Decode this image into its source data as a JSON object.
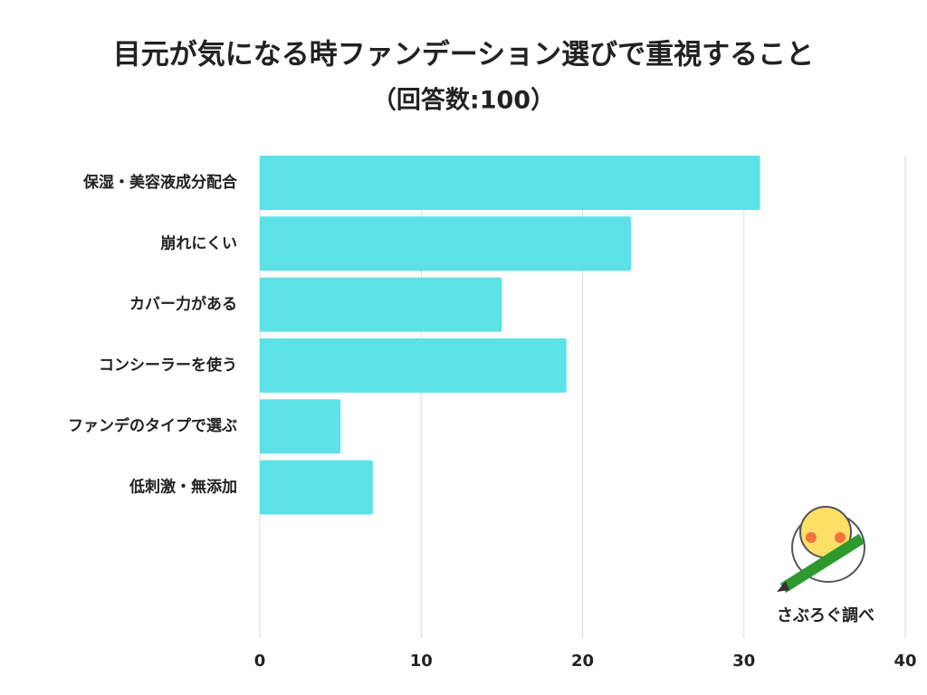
{
  "chart_data": {
    "type": "bar",
    "orientation": "horizontal",
    "title": "目元が気になる時ファンデーション選びで重視すること",
    "subtitle": "（回答数:100）",
    "categories": [
      "保湿・美容液成分配合",
      "崩れにくい",
      "カバー力がある",
      "コンシーラーを使う",
      "ファンデのタイプで選ぶ",
      "低刺激・無添加"
    ],
    "values": [
      31,
      23,
      15,
      19,
      5,
      7
    ],
    "color": "#5ce1e6",
    "xlim": [
      0,
      40
    ],
    "xticks": [
      0,
      10,
      20,
      30,
      40
    ],
    "grid": true,
    "annotation": "さぶろぐ調べ"
  }
}
